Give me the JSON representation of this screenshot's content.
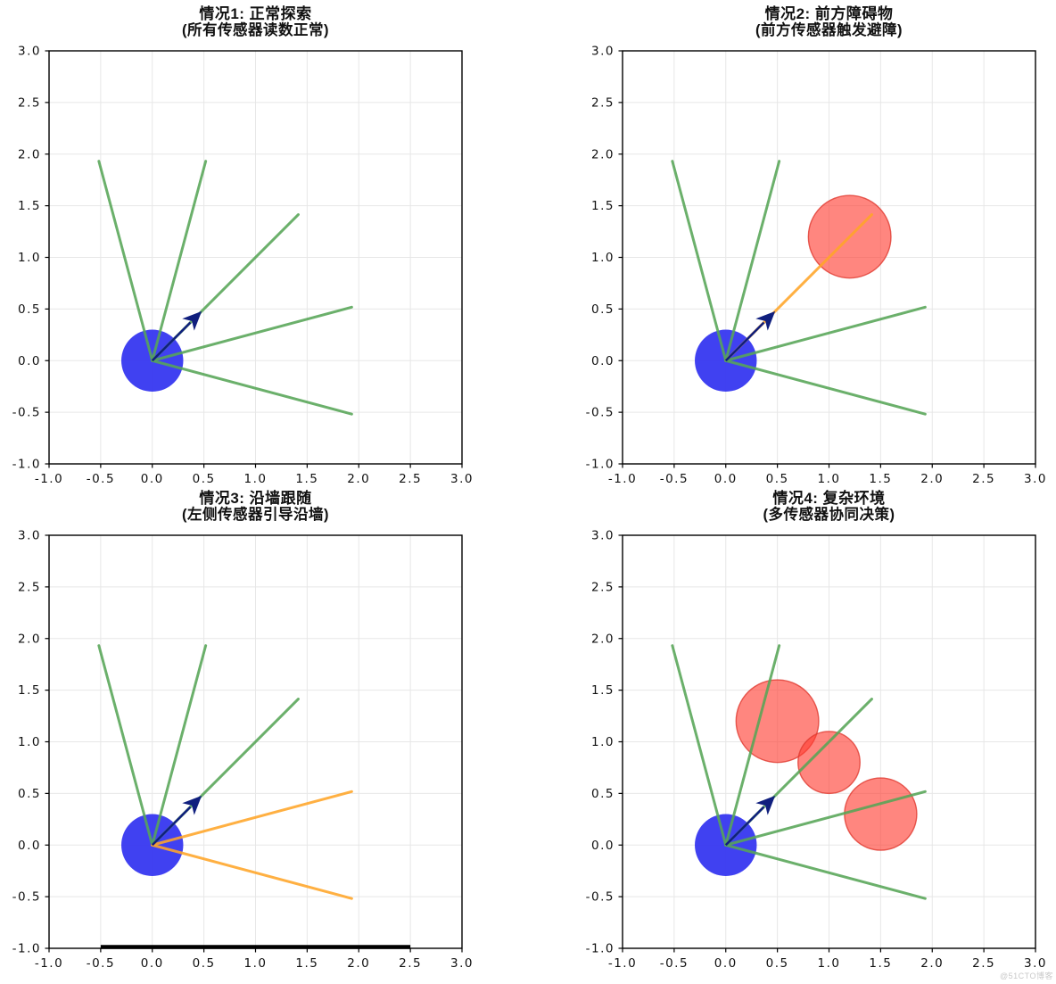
{
  "watermark": "@51CTO博客",
  "palette": {
    "background": "#ffffff",
    "ray_normal": "#56a556",
    "ray_triggered": "#ffa528",
    "robot_fill": "#3233f0",
    "arrow": "#101f7e",
    "obstacle_fill": "#ff3b30",
    "obstacle_edge": "#e03a30",
    "wall": "#000000",
    "grid": "#e7e7e7",
    "spine": "#000000",
    "tick_text": "#111111"
  },
  "axes": {
    "xlim": [
      -1.0,
      3.0
    ],
    "ylim": [
      -1.0,
      3.0
    ],
    "grid": true,
    "tick_values": [
      -1.0,
      -0.5,
      0.0,
      0.5,
      1.0,
      1.5,
      2.0,
      2.5,
      3.0
    ],
    "xtick_labels": [
      "-1.0",
      "-0.5",
      "0.0",
      "0.5",
      "1.0",
      "1.5",
      "2.0",
      "2.5",
      "3.0"
    ],
    "ytick_labels": [
      "-1.0",
      "-0.5",
      "0.0",
      "0.5",
      "1.0",
      "1.5",
      "2.0",
      "2.5",
      "3.0"
    ]
  },
  "chart_data": [
    {
      "type": "diagram",
      "subtype": "robot-sensor-scene",
      "title_line1": "情况1: 正常探索",
      "title_line2": "(所有传感器读数正常)",
      "robot": {
        "x": 0.0,
        "y": 0.0,
        "radius": 0.3
      },
      "heading": {
        "angle_deg": 45,
        "tip": [
          0.5,
          0.5
        ]
      },
      "sensor_rays": [
        {
          "angle_deg": 105,
          "length": 2.0,
          "status": "normal"
        },
        {
          "angle_deg": 75,
          "length": 2.0,
          "status": "normal"
        },
        {
          "angle_deg": 45,
          "length": 2.0,
          "status": "normal"
        },
        {
          "angle_deg": 15,
          "length": 2.0,
          "status": "normal"
        },
        {
          "angle_deg": -15,
          "length": 2.0,
          "status": "normal"
        }
      ],
      "obstacles": [],
      "wall": null
    },
    {
      "type": "diagram",
      "subtype": "robot-sensor-scene",
      "title_line1": "情况2: 前方障碍物",
      "title_line2": "(前方传感器触发避障)",
      "robot": {
        "x": 0.0,
        "y": 0.0,
        "radius": 0.3
      },
      "heading": {
        "angle_deg": 45,
        "tip": [
          0.5,
          0.5
        ]
      },
      "sensor_rays": [
        {
          "angle_deg": 105,
          "length": 2.0,
          "status": "normal"
        },
        {
          "angle_deg": 75,
          "length": 2.0,
          "status": "normal"
        },
        {
          "angle_deg": 45,
          "length": 2.0,
          "status": "triggered"
        },
        {
          "angle_deg": 15,
          "length": 2.0,
          "status": "normal"
        },
        {
          "angle_deg": -15,
          "length": 2.0,
          "status": "normal"
        }
      ],
      "obstacles": [
        {
          "x": 1.2,
          "y": 1.2,
          "radius": 0.4
        }
      ],
      "wall": null
    },
    {
      "type": "diagram",
      "subtype": "robot-sensor-scene",
      "title_line1": "情况3: 沿墙跟随",
      "title_line2": "(左侧传感器引导沿墙)",
      "robot": {
        "x": 0.0,
        "y": 0.0,
        "radius": 0.3
      },
      "heading": {
        "angle_deg": 45,
        "tip": [
          0.5,
          0.5
        ]
      },
      "sensor_rays": [
        {
          "angle_deg": 105,
          "length": 2.0,
          "status": "normal"
        },
        {
          "angle_deg": 75,
          "length": 2.0,
          "status": "normal"
        },
        {
          "angle_deg": 45,
          "length": 2.0,
          "status": "normal"
        },
        {
          "angle_deg": 15,
          "length": 2.0,
          "status": "triggered"
        },
        {
          "angle_deg": -15,
          "length": 2.0,
          "status": "triggered"
        }
      ],
      "obstacles": [],
      "wall": {
        "y": -1.0,
        "x_start": -0.5,
        "x_end": 2.5
      }
    },
    {
      "type": "diagram",
      "subtype": "robot-sensor-scene",
      "title_line1": "情况4: 复杂环境",
      "title_line2": "(多传感器协同决策)",
      "robot": {
        "x": 0.0,
        "y": 0.0,
        "radius": 0.3
      },
      "heading": {
        "angle_deg": 45,
        "tip": [
          0.5,
          0.5
        ]
      },
      "sensor_rays": [
        {
          "angle_deg": 105,
          "length": 2.0,
          "status": "normal"
        },
        {
          "angle_deg": 75,
          "length": 2.0,
          "status": "normal"
        },
        {
          "angle_deg": 45,
          "length": 2.0,
          "status": "normal"
        },
        {
          "angle_deg": 15,
          "length": 2.0,
          "status": "normal"
        },
        {
          "angle_deg": -15,
          "length": 2.0,
          "status": "normal"
        }
      ],
      "obstacles": [
        {
          "x": 0.5,
          "y": 1.2,
          "radius": 0.4
        },
        {
          "x": 1.0,
          "y": 0.8,
          "radius": 0.3
        },
        {
          "x": 1.5,
          "y": 0.3,
          "radius": 0.35
        }
      ],
      "wall": null
    }
  ]
}
